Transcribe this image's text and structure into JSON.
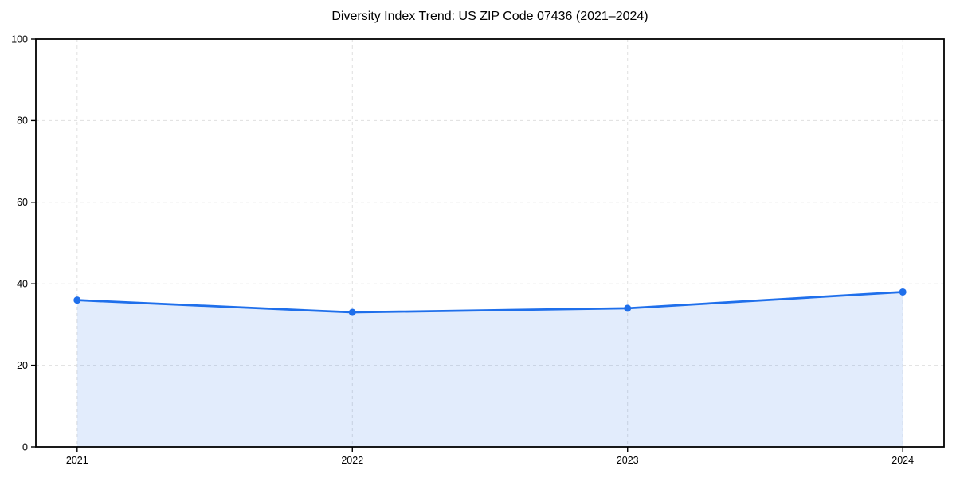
{
  "chart_data": {
    "type": "area",
    "title": "Diversity Index Trend: US ZIP Code 07436 (2021–2024)",
    "categories": [
      "2021",
      "2022",
      "2023",
      "2024"
    ],
    "series": [
      {
        "name": "Diversity Index",
        "values": [
          36,
          33,
          34,
          38
        ]
      }
    ],
    "xlabel": "",
    "ylabel": "",
    "ylim": [
      0,
      100
    ],
    "yticks": [
      0,
      20,
      40,
      60,
      80,
      100
    ],
    "x_margin_frac": 0.04545,
    "grid": "dashed",
    "legend": "none",
    "colors": {
      "line": "#1f6feb",
      "marker": "#1f6feb",
      "fill": "rgba(31,111,235,0.13)",
      "grid": "#dfdfdf",
      "axis": "#000000",
      "text": "#000000"
    }
  }
}
